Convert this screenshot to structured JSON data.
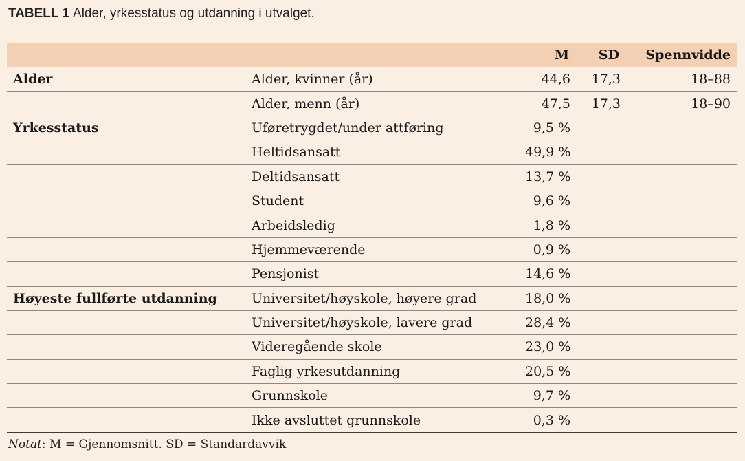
{
  "caption": {
    "label": "TABELL 1",
    "text": "Alder, yrkesstatus og utdanning i utvalget."
  },
  "table": {
    "headers": {
      "group": "",
      "item": "",
      "m": "M",
      "sd": "SD",
      "range": "Spennvidde"
    },
    "rows": [
      {
        "group": "Alder",
        "item": "Alder, kvinner (år)",
        "m": "44,6",
        "sd": "17,3",
        "range": "18–88"
      },
      {
        "group": "",
        "item": "Alder, menn (år)",
        "m": "47,5",
        "sd": "17,3",
        "range": "18–90"
      },
      {
        "group": "Yrkesstatus",
        "item": "Uføretrygdet/under attføring",
        "m": "9,5 %",
        "sd": "",
        "range": ""
      },
      {
        "group": "",
        "item": "Heltidsansatt",
        "m": "49,9 %",
        "sd": "",
        "range": ""
      },
      {
        "group": "",
        "item": "Deltidsansatt",
        "m": "13,7 %",
        "sd": "",
        "range": ""
      },
      {
        "group": "",
        "item": "Student",
        "m": "9,6 %",
        "sd": "",
        "range": ""
      },
      {
        "group": "",
        "item": "Arbeidsledig",
        "m": "1,8 %",
        "sd": "",
        "range": ""
      },
      {
        "group": "",
        "item": "Hjemmeværende",
        "m": "0,9 %",
        "sd": "",
        "range": ""
      },
      {
        "group": "",
        "item": "Pensjonist",
        "m": "14,6 %",
        "sd": "",
        "range": ""
      },
      {
        "group": "Høyeste fullførte utdanning",
        "item": "Universitet/høyskole, høyere grad",
        "m": "18,0 %",
        "sd": "",
        "range": ""
      },
      {
        "group": "",
        "item": "Universitet/høyskole, lavere grad",
        "m": "28,4 %",
        "sd": "",
        "range": ""
      },
      {
        "group": "",
        "item": "Videregående skole",
        "m": "23,0 %",
        "sd": "",
        "range": ""
      },
      {
        "group": "",
        "item": "Faglig yrkesutdanning",
        "m": "20,5 %",
        "sd": "",
        "range": ""
      },
      {
        "group": "",
        "item": "Grunnskole",
        "m": "9,7 %",
        "sd": "",
        "range": ""
      },
      {
        "group": "",
        "item": "Ikke avsluttet grunnskole",
        "m": "0,3 %",
        "sd": "",
        "range": ""
      }
    ]
  },
  "note": {
    "label": "Notat",
    "text": ": M = Gjennomsnitt. SD = Standardavvik"
  }
}
